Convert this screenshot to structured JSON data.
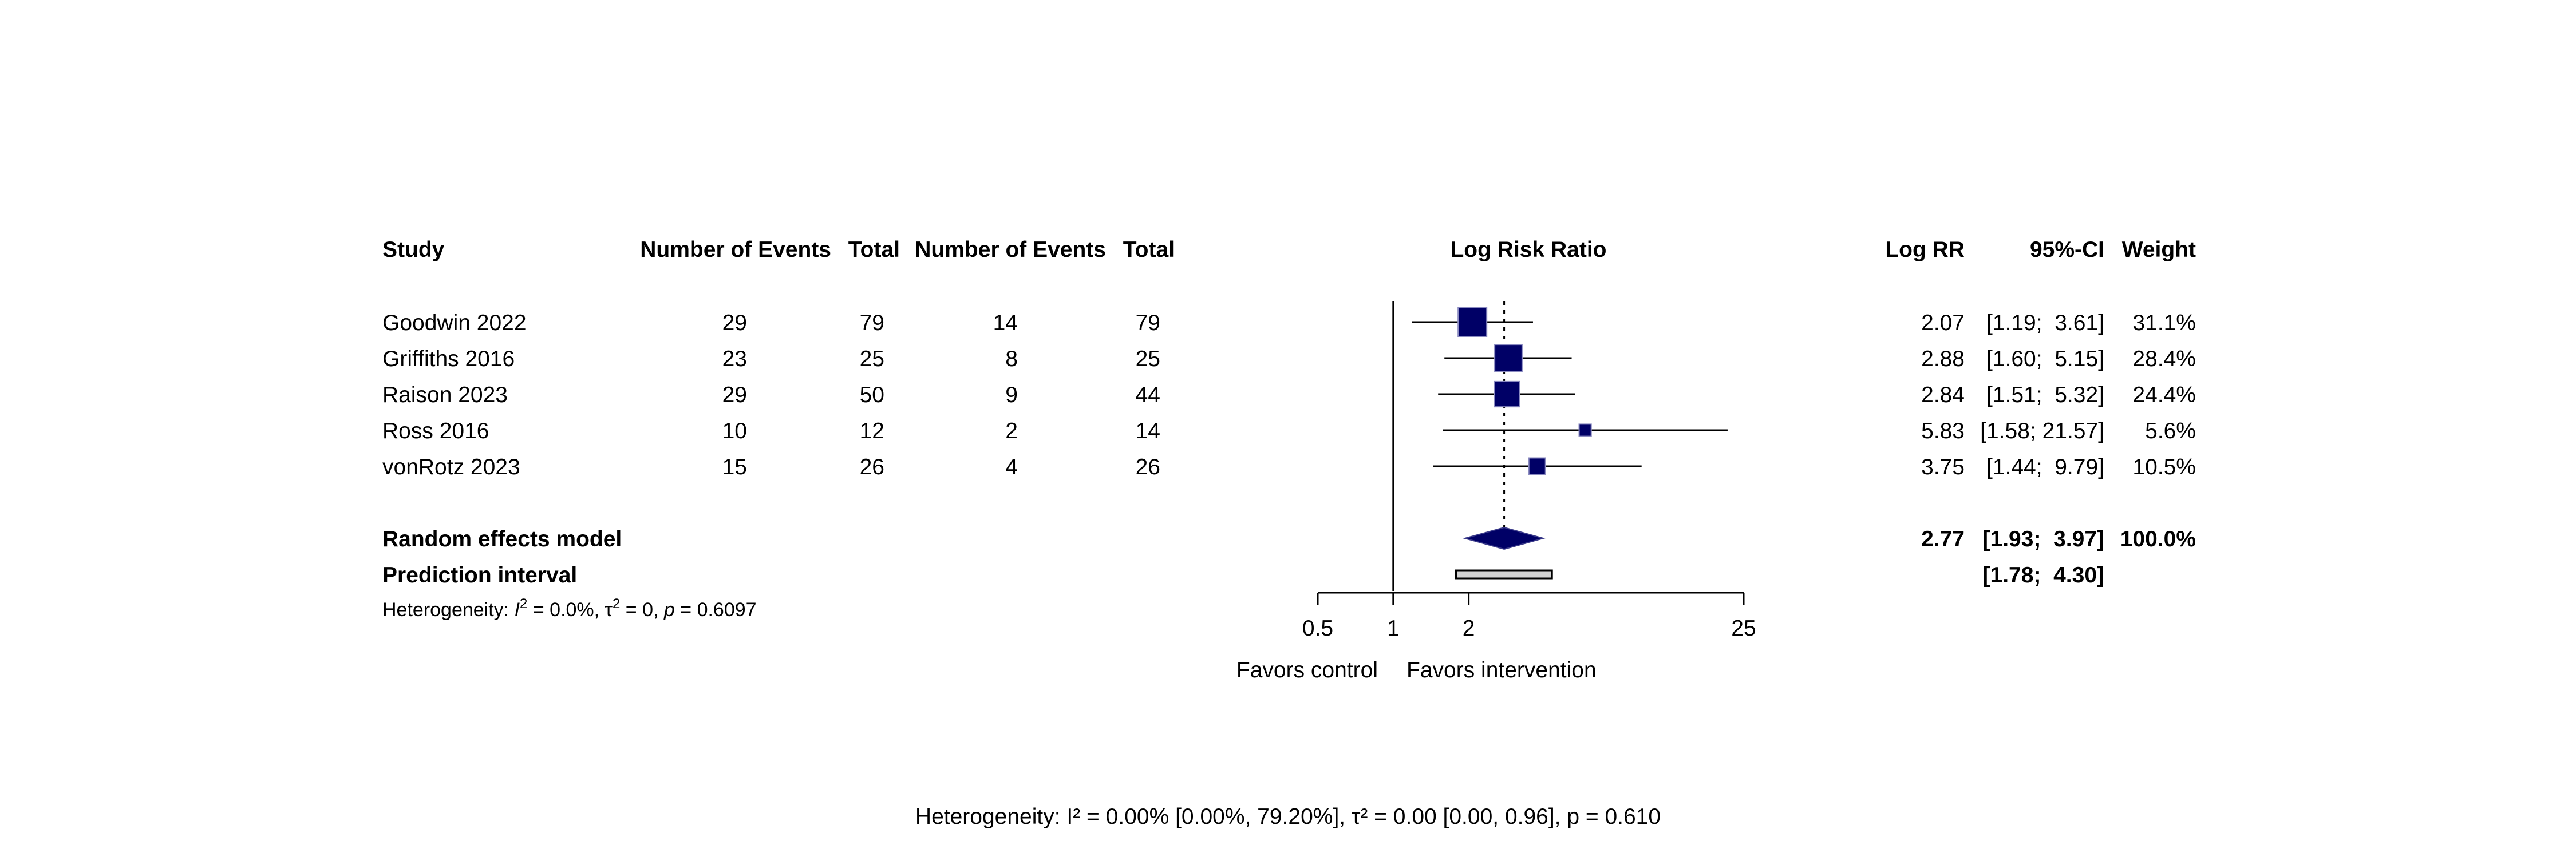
{
  "chart_data": {
    "type": "forest",
    "axis_title": "Log Risk Ratio",
    "scale": "log",
    "xlim": [
      0.5,
      25
    ],
    "reference_line": 1,
    "pooled_line": 2.77,
    "x_ticks": [
      "0.5",
      "1",
      "2",
      "25"
    ],
    "x_tick_values": [
      0.5,
      1,
      2,
      25
    ],
    "favors_left": "Favors control",
    "favors_right": "Favors intervention",
    "headers": {
      "study": "Study",
      "events_a": "Number of Events",
      "total_a": "Total",
      "events_b": "Number of Events",
      "total_b": "Total",
      "estimate": "Log RR",
      "ci": "95%-CI",
      "weight": "Weight"
    },
    "studies": [
      {
        "name": "Goodwin 2022",
        "events_a": "29",
        "total_a": "79",
        "events_b": "14",
        "total_b": "79",
        "estimate": 2.07,
        "lower": 1.19,
        "upper": 3.61,
        "estimate_text": "2.07",
        "ci_text": "[1.19;  3.61]",
        "weight": 31.1,
        "weight_text": "31.1%"
      },
      {
        "name": "Griffiths 2016",
        "events_a": "23",
        "total_a": "25",
        "events_b": "8",
        "total_b": "25",
        "estimate": 2.88,
        "lower": 1.6,
        "upper": 5.15,
        "estimate_text": "2.88",
        "ci_text": "[1.60;  5.15]",
        "weight": 28.4,
        "weight_text": "28.4%"
      },
      {
        "name": "Raison 2023",
        "events_a": "29",
        "total_a": "50",
        "events_b": "9",
        "total_b": "44",
        "estimate": 2.84,
        "lower": 1.51,
        "upper": 5.32,
        "estimate_text": "2.84",
        "ci_text": "[1.51;  5.32]",
        "weight": 24.4,
        "weight_text": "24.4%"
      },
      {
        "name": "Ross 2016",
        "events_a": "10",
        "total_a": "12",
        "events_b": "2",
        "total_b": "14",
        "estimate": 5.83,
        "lower": 1.58,
        "upper": 21.57,
        "estimate_text": "5.83",
        "ci_text": "[1.58; 21.57]",
        "weight": 5.6,
        "weight_text": "5.6%"
      },
      {
        "name": "vonRotz 2023",
        "events_a": "15",
        "total_a": "26",
        "events_b": "4",
        "total_b": "26",
        "estimate": 3.75,
        "lower": 1.44,
        "upper": 9.79,
        "estimate_text": "3.75",
        "ci_text": "[1.44;  9.79]",
        "weight": 10.5,
        "weight_text": "10.5%"
      }
    ],
    "random_effects": {
      "label": "Random effects model",
      "estimate": 2.77,
      "lower": 1.93,
      "upper": 3.97,
      "estimate_text": "2.77",
      "ci_text": "[1.93;  3.97]",
      "weight_text": "100.0%"
    },
    "prediction_interval": {
      "label": "Prediction interval",
      "lower": 1.78,
      "upper": 4.3,
      "ci_text": "[1.78;  4.30]"
    },
    "heterogeneity": {
      "prefix": "Heterogeneity: ",
      "i2_symbol": "I",
      "i2_value": " = 0.0%, τ",
      "tau_value": " = 0, ",
      "p_symbol": "p",
      "p_value": " = 0.6097"
    },
    "footer": "Heterogeneity: I² = 0.00% [0.00%, 79.20%], τ² = 0.00 [0.00, 0.96], p = 0.610",
    "colors": {
      "marker": "#000066",
      "pi_fill": "#d3d3d3",
      "line": "#000000"
    }
  }
}
